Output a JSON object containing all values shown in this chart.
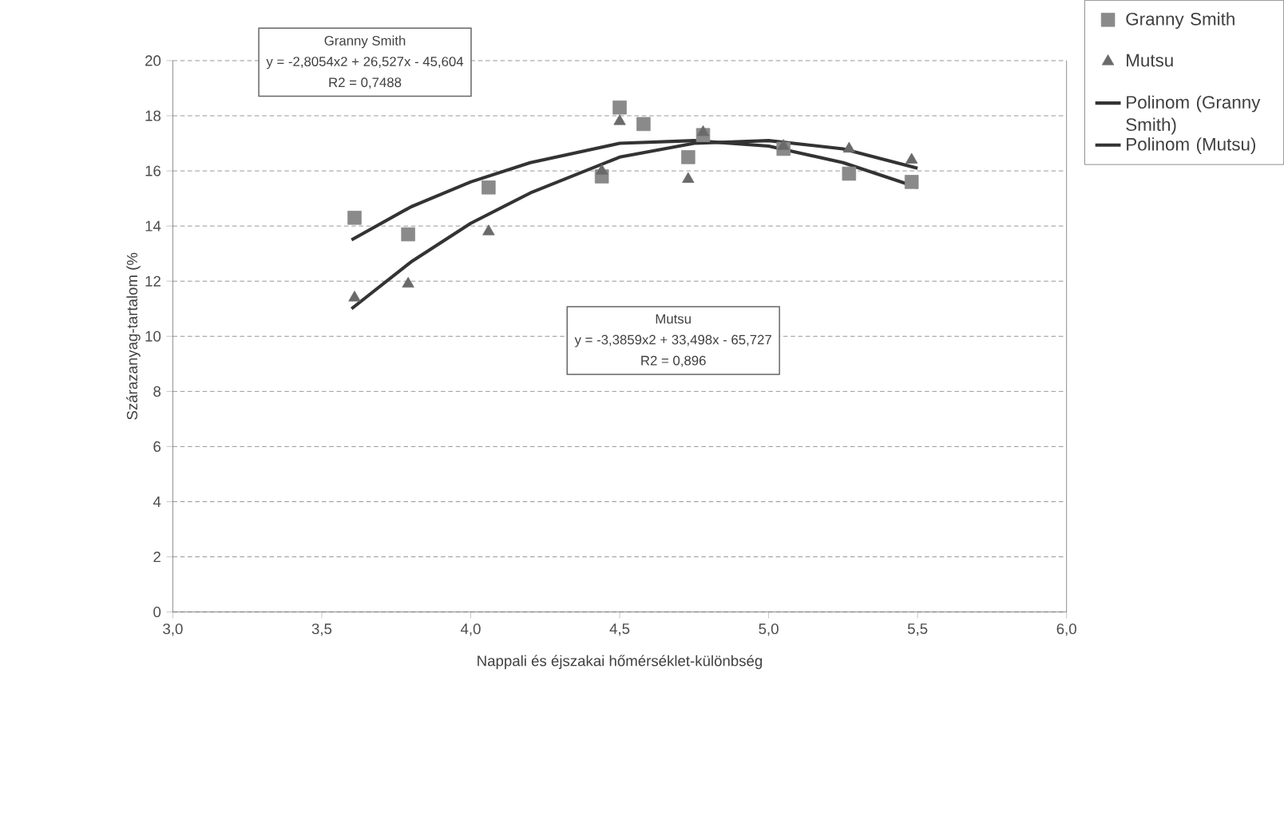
{
  "chart_data": {
    "type": "scatter",
    "xlabel": "Nappali és éjszakai hőmérséklet-különbség",
    "ylabel": "Szárazanyag-tartalom (%",
    "xlim": [
      3.0,
      6.0
    ],
    "xticks": [
      {
        "value": 3.0,
        "label": "3,0"
      },
      {
        "value": 3.5,
        "label": "3,5"
      },
      {
        "value": 4.0,
        "label": "4,0"
      },
      {
        "value": 4.5,
        "label": "4,5"
      },
      {
        "value": 5.0,
        "label": "5,0"
      },
      {
        "value": 5.5,
        "label": "5,5"
      },
      {
        "value": 6.0,
        "label": "6,0"
      }
    ],
    "ylim": [
      0,
      20
    ],
    "yticks": [
      0,
      2,
      4,
      6,
      8,
      10,
      12,
      14,
      16,
      18,
      20
    ],
    "grid": "y",
    "legend": "right",
    "annotations": [
      "Granny Smith",
      "y = -2,8054x2 + 26,527x - 45,604",
      "R2 = 0,7488",
      "Mutsu",
      "y = -3,3859x2 + 33,498x - 65,727",
      "R2 = 0,896"
    ],
    "series": [
      {
        "name": "Granny Smith",
        "type": "scatter",
        "marker": "square",
        "color": "#8a8a8a",
        "x": [
          3.61,
          3.79,
          4.06,
          4.44,
          4.5,
          4.58,
          4.73,
          4.78,
          5.05,
          5.27,
          5.48
        ],
        "values": [
          14.3,
          13.7,
          15.4,
          15.8,
          18.3,
          17.7,
          16.5,
          17.3,
          16.8,
          15.9,
          15.6
        ]
      },
      {
        "name": "Mutsu",
        "type": "scatter",
        "marker": "triangle",
        "color": "#6a6a6a",
        "x": [
          3.61,
          3.79,
          4.06,
          4.44,
          4.5,
          4.73,
          4.78,
          5.05,
          5.27,
          5.48
        ],
        "values": [
          11.4,
          11.9,
          13.8,
          16.0,
          17.8,
          15.7,
          17.4,
          16.9,
          16.8,
          16.4
        ]
      },
      {
        "name": "Polinom (Granny Smith)",
        "type": "line",
        "marker": "none",
        "color": "#333333",
        "x": [
          3.6,
          3.8,
          4.0,
          4.2,
          4.5,
          4.75,
          5.0,
          5.25,
          5.5
        ],
        "values": [
          13.5,
          14.7,
          15.6,
          16.3,
          17.0,
          17.1,
          16.9,
          16.3,
          15.4
        ]
      },
      {
        "name": "Polinom (Mutsu)",
        "type": "line",
        "marker": "none",
        "color": "#333333",
        "x": [
          3.6,
          3.8,
          4.0,
          4.2,
          4.5,
          4.75,
          5.0,
          5.25,
          5.5
        ],
        "values": [
          11.0,
          12.7,
          14.1,
          15.2,
          16.5,
          17.0,
          17.1,
          16.8,
          16.1
        ]
      }
    ]
  }
}
